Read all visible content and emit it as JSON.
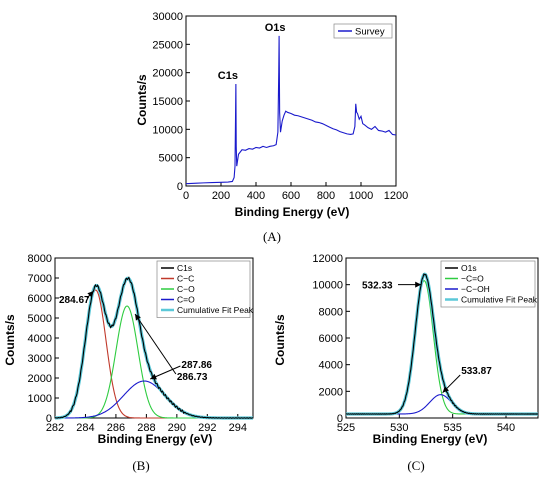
{
  "chart_data": [
    {
      "id": "A",
      "type": "line",
      "panel_label": "(A)",
      "xlabel": "Binding Energy (eV)",
      "ylabel": "Counts/s",
      "xlim": [
        0,
        1200
      ],
      "ylim": [
        0,
        30000
      ],
      "xticks": [
        0,
        200,
        400,
        600,
        800,
        1000,
        1200
      ],
      "yticks": [
        0,
        5000,
        10000,
        15000,
        20000,
        25000,
        30000
      ],
      "legend": {
        "position": "top-right",
        "entries": [
          "Survey"
        ]
      },
      "annotations": [
        {
          "text": "C1s",
          "x": 285,
          "y": 18000
        },
        {
          "text": "O1s",
          "x": 532,
          "y": 26500
        }
      ],
      "series": [
        {
          "name": "Survey",
          "color": "#1a1acc",
          "points": [
            [
              0,
              400
            ],
            [
              30,
              450
            ],
            [
              60,
              500
            ],
            [
              100,
              550
            ],
            [
              150,
              600
            ],
            [
              200,
              650
            ],
            [
              240,
              700
            ],
            [
              265,
              800
            ],
            [
              275,
              1500
            ],
            [
              280,
              3500
            ],
            [
              283,
              12000
            ],
            [
              285,
              18000
            ],
            [
              287,
              7000
            ],
            [
              290,
              3500
            ],
            [
              300,
              5600
            ],
            [
              320,
              6400
            ],
            [
              340,
              6300
            ],
            [
              360,
              6600
            ],
            [
              380,
              6500
            ],
            [
              400,
              6800
            ],
            [
              420,
              6700
            ],
            [
              440,
              7000
            ],
            [
              460,
              6800
            ],
            [
              480,
              7000
            ],
            [
              500,
              7100
            ],
            [
              515,
              7300
            ],
            [
              525,
              9500
            ],
            [
              530,
              20000
            ],
            [
              532,
              26500
            ],
            [
              535,
              13000
            ],
            [
              540,
              9500
            ],
            [
              550,
              11500
            ],
            [
              560,
              12500
            ],
            [
              570,
              13200
            ],
            [
              580,
              13000
            ],
            [
              600,
              12800
            ],
            [
              620,
              12500
            ],
            [
              640,
              12400
            ],
            [
              660,
              12200
            ],
            [
              680,
              12000
            ],
            [
              700,
              11800
            ],
            [
              720,
              11600
            ],
            [
              740,
              11300
            ],
            [
              760,
              11200
            ],
            [
              780,
              11000
            ],
            [
              800,
              10700
            ],
            [
              820,
              10400
            ],
            [
              840,
              10100
            ],
            [
              860,
              9900
            ],
            [
              880,
              9600
            ],
            [
              900,
              9400
            ],
            [
              920,
              9200
            ],
            [
              940,
              9100
            ],
            [
              955,
              9200
            ],
            [
              965,
              10500
            ],
            [
              970,
              14500
            ],
            [
              975,
              13000
            ],
            [
              980,
              12800
            ],
            [
              990,
              11800
            ],
            [
              1000,
              12300
            ],
            [
              1010,
              11000
            ],
            [
              1020,
              10800
            ],
            [
              1040,
              10300
            ],
            [
              1060,
              10000
            ],
            [
              1080,
              10500
            ],
            [
              1100,
              9800
            ],
            [
              1120,
              9700
            ],
            [
              1140,
              9500
            ],
            [
              1160,
              9800
            ],
            [
              1180,
              9100
            ],
            [
              1200,
              9000
            ]
          ]
        }
      ]
    },
    {
      "id": "B",
      "type": "line",
      "panel_label": "(B)",
      "xlabel": "Binding Energy (eV)",
      "ylabel": "Counts/s",
      "xlim": [
        282,
        295
      ],
      "ylim": [
        0,
        8000
      ],
      "xticks": [
        282,
        284,
        286,
        288,
        290,
        292,
        294
      ],
      "yticks": [
        0,
        1000,
        2000,
        3000,
        4000,
        5000,
        6000,
        7000,
        8000
      ],
      "legend": {
        "position": "top-right",
        "entries": [
          {
            "name": "C1s",
            "color": "#000000"
          },
          {
            "name": "C−C",
            "color": "#c0392b"
          },
          {
            "name": "C−O",
            "color": "#2ecc40"
          },
          {
            "name": "C=O",
            "color": "#1a1acc"
          },
          {
            "name": "Cumulative Fit Peak",
            "color": "#5bc8d8"
          }
        ]
      },
      "peaks": [
        {
          "name": "C−C",
          "center": 284.67,
          "height": 6400,
          "fwhm": 1.6
        },
        {
          "name": "C−O",
          "center": 286.73,
          "height": 5600,
          "fwhm": 1.7
        },
        {
          "name": "C=O",
          "center": 287.86,
          "height": 1850,
          "fwhm": 3.2
        }
      ],
      "annotations": [
        {
          "text": "284.67",
          "x": 284.67,
          "y": 6400
        },
        {
          "text": "286.73",
          "x": 286.73,
          "y": 5600
        },
        {
          "text": "287.86",
          "x": 287.86,
          "y": 1850
        }
      ]
    },
    {
      "id": "C",
      "type": "line",
      "panel_label": "(C)",
      "xlabel": "Binding Energy (eV)",
      "ylabel": "Counts/s",
      "xlim": [
        525,
        543
      ],
      "ylim": [
        0,
        12000
      ],
      "xticks": [
        525,
        530,
        535,
        540
      ],
      "yticks": [
        0,
        2000,
        4000,
        6000,
        8000,
        10000,
        12000
      ],
      "legend": {
        "position": "top-right",
        "entries": [
          {
            "name": "O1s",
            "color": "#000000"
          },
          {
            "name": "−C=O",
            "color": "#2ecc40"
          },
          {
            "name": "−C−OH",
            "color": "#1a1acc"
          },
          {
            "name": "Cumulative Fit Peak",
            "color": "#5bc8d8"
          }
        ]
      },
      "peaks": [
        {
          "name": "−C=O",
          "center": 532.33,
          "height": 10000,
          "fwhm": 2.0
        },
        {
          "name": "−C−OH",
          "center": 533.87,
          "height": 1450,
          "fwhm": 2.4
        }
      ],
      "annotations": [
        {
          "text": "532.33",
          "x": 532.33,
          "y": 10000
        },
        {
          "text": "533.87",
          "x": 533.87,
          "y": 1450
        }
      ]
    }
  ]
}
